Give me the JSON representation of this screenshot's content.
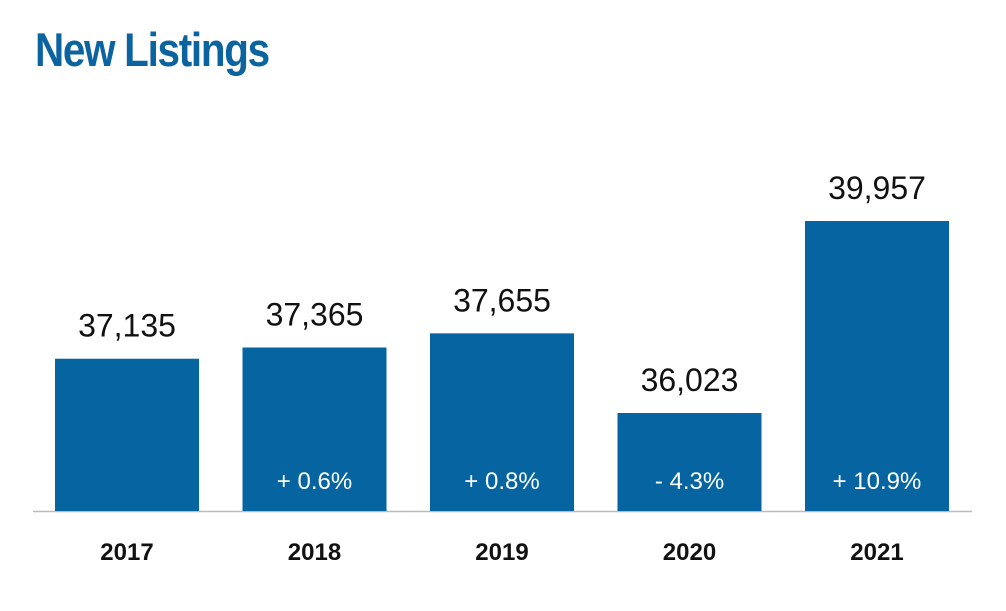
{
  "chart_data": {
    "type": "bar",
    "title": "New Listings",
    "categories": [
      "2017",
      "2018",
      "2019",
      "2020",
      "2021"
    ],
    "values": [
      37135,
      37365,
      37655,
      36023,
      39957
    ],
    "value_labels": [
      "37,135",
      "37,365",
      "37,655",
      "36,023",
      "39,957"
    ],
    "change_labels": [
      "",
      "+ 0.6%",
      "+ 0.8%",
      "- 4.3%",
      "+ 10.9%"
    ],
    "xlabel": "",
    "ylabel": "",
    "grid": false,
    "legend": "none"
  },
  "colors": {
    "bar": "#0664a0",
    "title": "#0b63a0",
    "axis": "#bbbbbb"
  }
}
